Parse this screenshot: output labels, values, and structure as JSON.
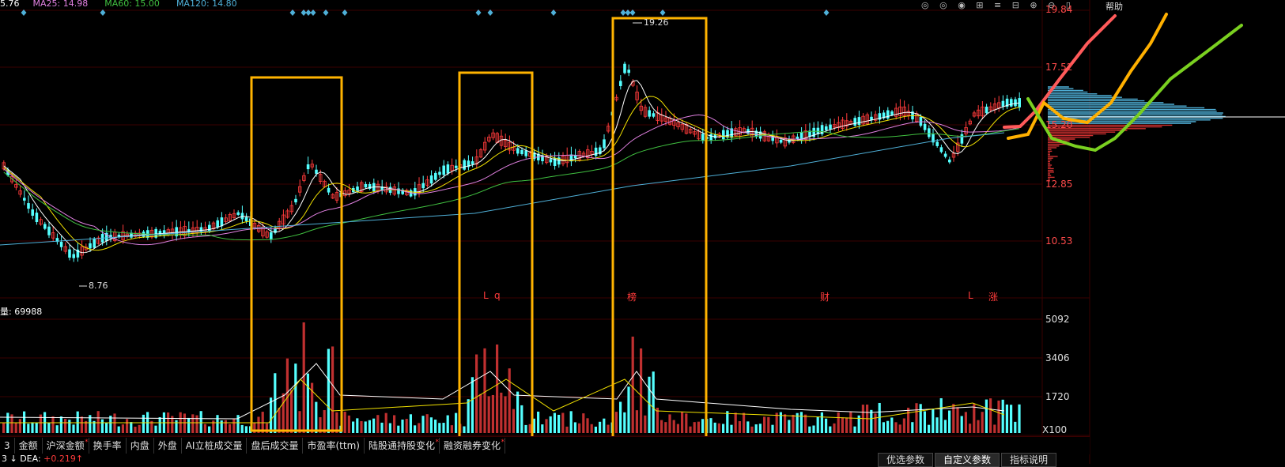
{
  "top_ma": {
    "ma_first": "5.76",
    "ma25": "MA25: 14.98",
    "ma60": "MA60: 15.00",
    "ma120": "MA120: 14.80"
  },
  "window_icons": "◎ ◎ ◉ ⊞ ≡ ⊟ ⊕ ⊖ ▯",
  "help_label": "帮助",
  "price_axis": [
    "19.84",
    "17.52",
    "15.20",
    "12.85",
    "10.53"
  ],
  "volume_axis": [
    "5092",
    "3406",
    "1720",
    "X100"
  ],
  "volume_label": "量: 69988",
  "high_label": "19.26",
  "low_label": "8.76",
  "event_markers": [
    {
      "text": "L"
    },
    {
      "text": "q"
    },
    {
      "text": "榜"
    },
    {
      "text": "财"
    },
    {
      "text": "L"
    },
    {
      "text": "涨"
    }
  ],
  "tabs": [
    {
      "label": "3"
    },
    {
      "label": "金额"
    },
    {
      "label": "沪深金额",
      "star": true
    },
    {
      "label": "换手率"
    },
    {
      "label": "内盘"
    },
    {
      "label": "外盘"
    },
    {
      "label": "AI立桩成交量"
    },
    {
      "label": "盘后成交量"
    },
    {
      "label": "市盈率(ttm)"
    },
    {
      "label": "陆股通持股变化",
      "star": true
    },
    {
      "label": "融资融券变化",
      "star": true
    }
  ],
  "status": {
    "prefix": "3 ↓ DEA: ",
    "value": "+0.219",
    "arrow": "↑"
  },
  "bottom_buttons": [
    {
      "label": "优选参数"
    },
    {
      "label": "自定义参数",
      "active": true
    },
    {
      "label": "指标说明"
    }
  ],
  "colors": {
    "up": "#ff3b3b",
    "down": "#54ffff",
    "ma_white": "#ffffff",
    "ma_yellow": "#f0e000",
    "ma_magenta": "#e080e0",
    "ma_green": "#40c040",
    "ma_blue": "#4fb0d8",
    "box": "#ffb300"
  }
}
